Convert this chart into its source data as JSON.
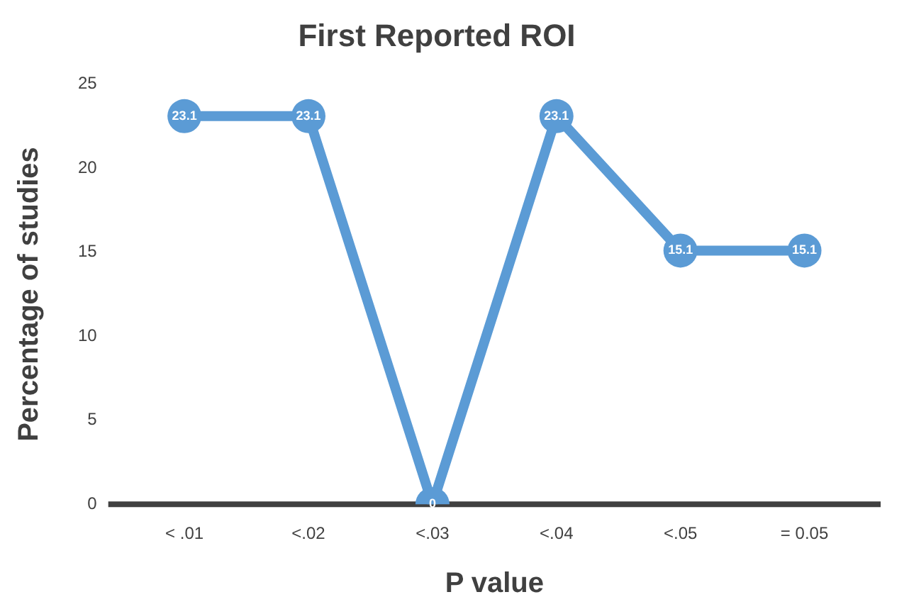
{
  "chart_data": {
    "type": "line",
    "title": "First Reported ROI",
    "xlabel": "P value",
    "ylabel": "Percentage of studies",
    "categories": [
      "< .01",
      "<.02",
      "<.03",
      "<.04",
      "<.05",
      "= 0.05"
    ],
    "series": [
      {
        "color": "#5b9bd5",
        "values": [
          23.1,
          23.1,
          0,
          23.1,
          15.1,
          15.1
        ]
      }
    ],
    "ylim": [
      0,
      25
    ],
    "yticks": [
      0,
      5,
      10,
      15,
      20,
      25
    ],
    "grid": false,
    "legend": false,
    "marker": "circle",
    "line_style": "solid",
    "data_labels": true
  }
}
